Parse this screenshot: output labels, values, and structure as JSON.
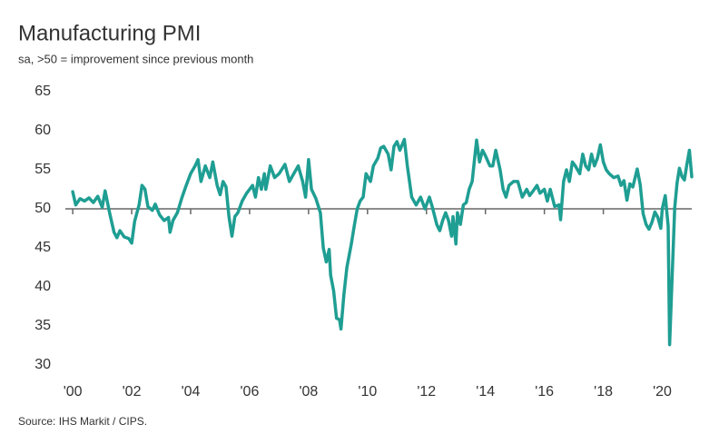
{
  "chart_data": {
    "type": "line",
    "title": "Manufacturing PMI",
    "subtitle": "sa, >50 = improvement since previous month",
    "source": "Source: IHS Markit / CIPS.",
    "color": "#1f9e93",
    "reference_line": 50,
    "xlim": [
      1999.75,
      2021.0
    ],
    "ylim": [
      30,
      65
    ],
    "yticks": [
      30,
      35,
      40,
      45,
      50,
      55,
      60,
      65
    ],
    "xticks": [
      {
        "value": 2000,
        "label": "'00"
      },
      {
        "value": 2002,
        "label": "'02"
      },
      {
        "value": 2004,
        "label": "'04"
      },
      {
        "value": 2006,
        "label": "'06"
      },
      {
        "value": 2008,
        "label": "'08"
      },
      {
        "value": 2010,
        "label": "'10"
      },
      {
        "value": 2012,
        "label": "'12"
      },
      {
        "value": 2014,
        "label": "'14"
      },
      {
        "value": 2016,
        "label": "'16"
      },
      {
        "value": 2018,
        "label": "'18"
      },
      {
        "value": 2020,
        "label": "'20"
      }
    ],
    "x": [
      2000.0,
      2000.1,
      2000.25,
      2000.4,
      2000.55,
      2000.7,
      2000.85,
      2001.0,
      2001.1,
      2001.25,
      2001.4,
      2001.5,
      2001.6,
      2001.75,
      2001.9,
      2002.0,
      2002.1,
      2002.25,
      2002.35,
      2002.45,
      2002.55,
      2002.7,
      2002.8,
      2002.95,
      2003.1,
      2003.25,
      2003.3,
      2003.4,
      2003.55,
      2003.7,
      2003.85,
      2004.0,
      2004.15,
      2004.25,
      2004.35,
      2004.5,
      2004.65,
      2004.75,
      2004.9,
      2005.0,
      2005.1,
      2005.2,
      2005.3,
      2005.4,
      2005.5,
      2005.6,
      2005.75,
      2005.9,
      2006.1,
      2006.2,
      2006.3,
      2006.4,
      2006.5,
      2006.55,
      2006.7,
      2006.85,
      2007.0,
      2007.2,
      2007.35,
      2007.5,
      2007.65,
      2007.8,
      2007.9,
      2008.0,
      2008.1,
      2008.25,
      2008.4,
      2008.5,
      2008.6,
      2008.7,
      2008.75,
      2008.85,
      2008.95,
      2009.05,
      2009.1,
      2009.2,
      2009.3,
      2009.45,
      2009.55,
      2009.65,
      2009.75,
      2009.85,
      2009.95,
      2010.1,
      2010.2,
      2010.35,
      2010.45,
      2010.55,
      2010.7,
      2010.8,
      2010.9,
      2011.0,
      2011.1,
      2011.25,
      2011.35,
      2011.5,
      2011.65,
      2011.8,
      2011.95,
      2012.1,
      2012.2,
      2012.35,
      2012.45,
      2012.55,
      2012.65,
      2012.75,
      2012.85,
      2012.9,
      2013.0,
      2013.05,
      2013.15,
      2013.25,
      2013.35,
      2013.45,
      2013.55,
      2013.65,
      2013.7,
      2013.8,
      2013.9,
      2014.0,
      2014.15,
      2014.25,
      2014.35,
      2014.5,
      2014.6,
      2014.7,
      2014.8,
      2014.95,
      2015.1,
      2015.25,
      2015.4,
      2015.5,
      2015.6,
      2015.75,
      2015.85,
      2016.0,
      2016.1,
      2016.2,
      2016.35,
      2016.5,
      2016.55,
      2016.65,
      2016.75,
      2016.85,
      2016.95,
      2017.05,
      2017.2,
      2017.3,
      2017.4,
      2017.5,
      2017.6,
      2017.7,
      2017.8,
      2017.9,
      2018.0,
      2018.1,
      2018.2,
      2018.35,
      2018.5,
      2018.6,
      2018.7,
      2018.8,
      2018.9,
      2019.0,
      2019.15,
      2019.25,
      2019.35,
      2019.45,
      2019.55,
      2019.65,
      2019.75,
      2019.85,
      2019.95,
      2020.0,
      2020.1,
      2020.2,
      2020.25,
      2020.33,
      2020.42,
      2020.5,
      2020.58,
      2020.67,
      2020.75,
      2020.83,
      2020.92,
      2021.0
    ],
    "values": [
      52.2,
      50.5,
      51.3,
      51.0,
      51.4,
      50.8,
      51.6,
      50.2,
      52.3,
      49.5,
      47.0,
      46.3,
      47.2,
      46.4,
      46.2,
      45.6,
      48.4,
      50.5,
      53.0,
      52.5,
      50.3,
      49.8,
      50.6,
      49.2,
      48.5,
      48.9,
      47.0,
      48.5,
      49.5,
      51.4,
      53.0,
      54.5,
      55.5,
      56.3,
      53.5,
      55.5,
      54.0,
      56.0,
      53.0,
      51.8,
      53.5,
      52.8,
      49.0,
      46.5,
      49.0,
      49.5,
      51.0,
      52.0,
      53.0,
      51.5,
      54.0,
      52.5,
      54.5,
      52.5,
      55.5,
      54.0,
      54.5,
      55.7,
      53.5,
      54.5,
      55.5,
      53.5,
      51.5,
      56.3,
      52.5,
      51.3,
      49.5,
      45.0,
      43.2,
      44.8,
      41.5,
      39.5,
      36.0,
      35.8,
      34.6,
      39.0,
      42.5,
      45.5,
      47.8,
      50.0,
      51.0,
      51.5,
      54.5,
      53.5,
      55.5,
      56.5,
      57.8,
      58.0,
      57.0,
      55.0,
      58.0,
      58.6,
      57.5,
      58.9,
      55.5,
      51.5,
      50.5,
      51.5,
      50.0,
      51.5,
      50.2,
      48.0,
      47.2,
      48.5,
      49.5,
      48.5,
      46.5,
      49.0,
      45.5,
      49.5,
      48.0,
      50.5,
      50.8,
      52.5,
      53.5,
      57.0,
      58.8,
      56.0,
      57.5,
      56.8,
      55.5,
      55.5,
      57.5,
      55.0,
      52.5,
      51.5,
      53.0,
      53.5,
      53.5,
      51.5,
      52.5,
      51.7,
      52.2,
      53.0,
      52.0,
      52.5,
      51.0,
      52.5,
      50.3,
      50.5,
      48.6,
      53.5,
      55.0,
      53.5,
      56.0,
      55.5,
      54.5,
      57.0,
      55.5,
      55.0,
      57.0,
      55.5,
      56.5,
      58.2,
      56.0,
      55.0,
      54.5,
      54.0,
      54.2,
      53.0,
      53.6,
      51.1,
      53.2,
      52.8,
      55.1,
      53.1,
      49.4,
      48.0,
      47.4,
      48.3,
      49.6,
      48.9,
      47.5,
      50.0,
      51.7,
      47.8,
      32.6,
      40.7,
      50.1,
      53.3,
      55.2,
      54.1,
      53.7,
      55.6,
      57.5,
      54.1
    ]
  }
}
